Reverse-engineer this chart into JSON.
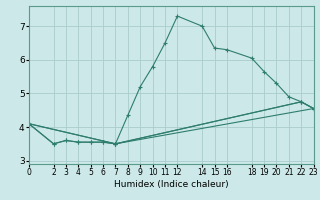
{
  "xlabel": "Humidex (Indice chaleur)",
  "ylabel": "",
  "background_color": "#cce8e8",
  "grid_color": "#aacccc",
  "line_color": "#2e7d6e",
  "xlim": [
    0,
    23
  ],
  "ylim": [
    2.9,
    7.6
  ],
  "xticks": [
    0,
    2,
    3,
    4,
    5,
    6,
    7,
    8,
    9,
    10,
    11,
    12,
    14,
    15,
    16,
    18,
    19,
    20,
    21,
    22,
    23
  ],
  "yticks": [
    3,
    4,
    5,
    6,
    7
  ],
  "lines": [
    {
      "x": [
        0,
        2,
        3,
        4,
        5,
        6,
        7,
        8,
        9,
        10,
        11,
        12,
        14,
        15,
        16,
        18,
        19,
        20,
        21,
        22,
        23
      ],
      "y": [
        4.1,
        3.5,
        3.6,
        3.55,
        3.55,
        3.55,
        3.5,
        4.35,
        5.2,
        5.8,
        6.5,
        7.3,
        7.0,
        6.35,
        6.3,
        6.05,
        5.65,
        5.3,
        4.9,
        4.75,
        4.55
      ]
    },
    {
      "x": [
        0,
        2,
        3,
        4,
        5,
        6,
        7,
        22,
        23
      ],
      "y": [
        4.1,
        3.5,
        3.6,
        3.55,
        3.55,
        3.55,
        3.5,
        4.75,
        4.55
      ]
    },
    {
      "x": [
        0,
        7,
        22,
        23
      ],
      "y": [
        4.1,
        3.5,
        4.75,
        4.55
      ]
    },
    {
      "x": [
        0,
        7,
        23
      ],
      "y": [
        4.1,
        3.5,
        4.55
      ]
    }
  ]
}
